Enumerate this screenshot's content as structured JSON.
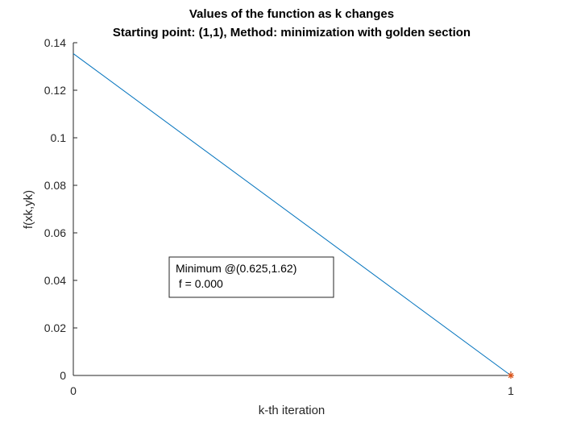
{
  "chart_data": {
    "type": "line",
    "title": "Values of the function as k changes",
    "subtitle": "Starting point: (1,1), Method: minimization with golden section",
    "xlabel": "k-th iteration",
    "ylabel": "f(xk,yk)",
    "xlim": [
      0,
      1
    ],
    "ylim": [
      0,
      0.14
    ],
    "xticks": [
      0,
      1
    ],
    "xtick_labels": [
      "0",
      "1"
    ],
    "yticks": [
      0,
      0.02,
      0.04,
      0.06,
      0.08,
      0.1,
      0.12,
      0.14
    ],
    "ytick_labels": [
      "0",
      "0.02",
      "0.04",
      "0.06",
      "0.08",
      "0.1",
      "0.12",
      "0.14"
    ],
    "grid": false,
    "series": [
      {
        "x": [
          0,
          1
        ],
        "y": [
          0.1354,
          0.0
        ],
        "color": "#0072BD"
      }
    ],
    "minimum_marker": {
      "x": 1,
      "y": 0.0,
      "marker": "asterisk",
      "color": "#D95319"
    },
    "annotation": {
      "lines": [
        "Minimum @(0.625,1.62)",
        " f = 0.000"
      ]
    }
  }
}
